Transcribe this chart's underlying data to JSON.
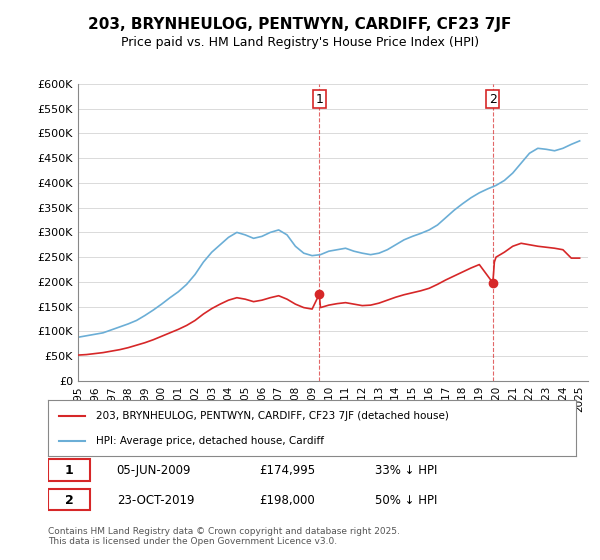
{
  "title": "203, BRYNHEULOG, PENTWYN, CARDIFF, CF23 7JF",
  "subtitle": "Price paid vs. HM Land Registry's House Price Index (HPI)",
  "ylabel_ticks": [
    "£0",
    "£50K",
    "£100K",
    "£150K",
    "£200K",
    "£250K",
    "£300K",
    "£350K",
    "£400K",
    "£450K",
    "£500K",
    "£550K",
    "£600K"
  ],
  "ylim": [
    0,
    600000
  ],
  "hpi_color": "#6baed6",
  "price_color": "#d62728",
  "annotation_color": "#d62728",
  "dashed_color": "#d62728",
  "background_color": "#ffffff",
  "legend_label_red": "203, BRYNHEULOG, PENTWYN, CARDIFF, CF23 7JF (detached house)",
  "legend_label_blue": "HPI: Average price, detached house, Cardiff",
  "footnote": "Contains HM Land Registry data © Crown copyright and database right 2025.\nThis data is licensed under the Open Government Licence v3.0.",
  "sale1_date": "05-JUN-2009",
  "sale1_price": "£174,995",
  "sale1_note": "33% ↓ HPI",
  "sale1_year": 2009.43,
  "sale1_price_val": 174995,
  "sale2_date": "23-OCT-2019",
  "sale2_price": "£198,000",
  "sale2_note": "50% ↓ HPI",
  "sale2_year": 2019.81,
  "sale2_price_val": 198000,
  "hpi_years": [
    1995,
    1995.5,
    1996,
    1996.5,
    1997,
    1997.5,
    1998,
    1998.5,
    1999,
    1999.5,
    2000,
    2000.5,
    2001,
    2001.5,
    2002,
    2002.5,
    2003,
    2003.5,
    2004,
    2004.5,
    2005,
    2005.5,
    2006,
    2006.5,
    2007,
    2007.5,
    2008,
    2008.5,
    2009,
    2009.5,
    2010,
    2010.5,
    2011,
    2011.5,
    2012,
    2012.5,
    2013,
    2013.5,
    2014,
    2014.5,
    2015,
    2015.5,
    2016,
    2016.5,
    2017,
    2017.5,
    2018,
    2018.5,
    2019,
    2019.5,
    2020,
    2020.5,
    2021,
    2021.5,
    2022,
    2022.5,
    2023,
    2023.5,
    2024,
    2024.5,
    2025
  ],
  "hpi_values": [
    88000,
    91000,
    94000,
    97000,
    103000,
    109000,
    115000,
    122000,
    132000,
    143000,
    155000,
    168000,
    180000,
    195000,
    215000,
    240000,
    260000,
    275000,
    290000,
    300000,
    295000,
    288000,
    292000,
    300000,
    305000,
    295000,
    272000,
    258000,
    253000,
    255000,
    262000,
    265000,
    268000,
    262000,
    258000,
    255000,
    258000,
    265000,
    275000,
    285000,
    292000,
    298000,
    305000,
    315000,
    330000,
    345000,
    358000,
    370000,
    380000,
    388000,
    395000,
    405000,
    420000,
    440000,
    460000,
    470000,
    468000,
    465000,
    470000,
    478000,
    485000
  ],
  "price_years": [
    1995,
    1995.5,
    1996,
    1996.5,
    1997,
    1997.5,
    1998,
    1998.5,
    1999,
    1999.5,
    2000,
    2000.5,
    2001,
    2001.5,
    2002,
    2002.5,
    2003,
    2003.5,
    2004,
    2004.5,
    2005,
    2005.5,
    2006,
    2006.5,
    2007,
    2007.5,
    2008,
    2008.5,
    2009,
    2009.43,
    2009.5,
    2010,
    2010.5,
    2011,
    2011.5,
    2012,
    2012.5,
    2013,
    2013.5,
    2014,
    2014.5,
    2015,
    2015.5,
    2016,
    2016.5,
    2017,
    2017.5,
    2018,
    2018.5,
    2019,
    2019.81,
    2019.9,
    2020,
    2020.5,
    2021,
    2021.5,
    2022,
    2022.5,
    2023,
    2023.5,
    2024,
    2024.5,
    2025
  ],
  "price_values": [
    52000,
    53000,
    55000,
    57000,
    60000,
    63000,
    67000,
    72000,
    77000,
    83000,
    90000,
    97000,
    104000,
    112000,
    122000,
    135000,
    146000,
    155000,
    163000,
    168000,
    165000,
    160000,
    163000,
    168000,
    172000,
    165000,
    155000,
    148000,
    145000,
    174995,
    148000,
    153000,
    156000,
    158000,
    155000,
    152000,
    153000,
    157000,
    163000,
    169000,
    174000,
    178000,
    182000,
    187000,
    195000,
    204000,
    212000,
    220000,
    228000,
    235000,
    198000,
    240000,
    250000,
    260000,
    272000,
    278000,
    275000,
    272000,
    270000,
    268000,
    265000,
    248000,
    248000
  ]
}
